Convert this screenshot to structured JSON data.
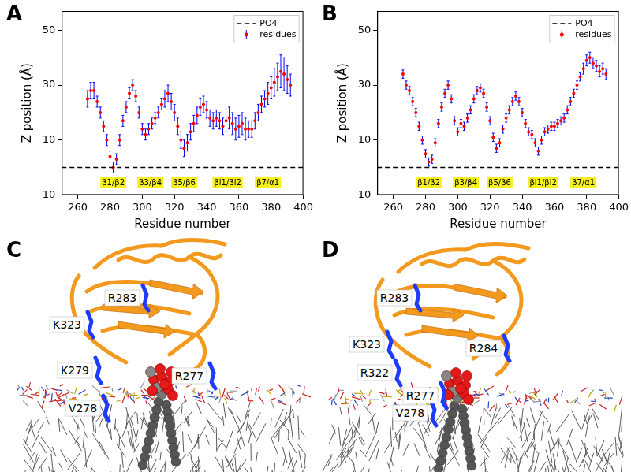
{
  "chart_data": [
    {
      "panel": "A",
      "type": "scatter",
      "x_label": "Residue number",
      "y_label": "Z position (Å)",
      "x": [
        266,
        268,
        270,
        272,
        274,
        276,
        278,
        280,
        282,
        284,
        286,
        288,
        290,
        292,
        294,
        296,
        298,
        300,
        302,
        304,
        306,
        308,
        310,
        312,
        314,
        316,
        318,
        320,
        322,
        324,
        326,
        328,
        330,
        332,
        334,
        336,
        338,
        340,
        342,
        344,
        346,
        348,
        350,
        352,
        354,
        356,
        358,
        360,
        362,
        364,
        366,
        368,
        370,
        372,
        374,
        376,
        378,
        380,
        382,
        384,
        386,
        388,
        390,
        392
      ],
      "series": [
        {
          "name": "residues",
          "color": "#ff0000",
          "marker": "circle",
          "values": [
            25,
            28,
            28,
            24,
            20,
            15,
            10,
            4,
            0,
            3,
            10,
            17,
            22,
            27,
            30,
            26,
            20,
            14,
            12,
            14,
            16,
            18,
            20,
            23,
            25,
            27,
            24,
            20,
            15,
            10,
            7,
            9,
            13,
            16,
            19,
            22,
            23,
            21,
            18,
            17,
            18,
            17,
            15,
            17,
            18,
            16,
            14,
            15,
            16,
            14,
            14,
            14,
            17,
            20,
            23,
            25,
            27,
            29,
            31,
            33,
            35,
            34,
            32,
            30
          ],
          "errors": [
            3,
            3,
            3,
            2,
            2,
            2,
            2,
            2,
            2,
            2,
            2,
            2,
            2,
            2,
            2,
            2,
            2,
            2,
            2,
            2,
            2,
            2,
            2,
            2,
            3,
            3,
            3,
            3,
            3,
            3,
            3,
            3,
            3,
            3,
            3,
            3,
            3,
            3,
            3,
            3,
            3,
            3,
            3,
            4,
            4,
            4,
            4,
            4,
            4,
            4,
            3,
            3,
            3,
            3,
            3,
            3,
            4,
            4,
            5,
            5,
            6,
            6,
            5,
            4
          ]
        }
      ],
      "reference_lines": [
        {
          "name": "PO4",
          "y": 0,
          "color": "#000000",
          "line_style": "dashed"
        }
      ],
      "annotations": [
        {
          "text": "β1/β2",
          "x": 282,
          "y": -5.5
        },
        {
          "text": "β3/β4",
          "x": 305,
          "y": -5.5
        },
        {
          "text": "β5/β6",
          "x": 326,
          "y": -5.5
        },
        {
          "text": "βi1/βi2",
          "x": 353,
          "y": -5.5
        },
        {
          "text": "β7/α1",
          "x": 378,
          "y": -5.5
        }
      ],
      "xlim": [
        250,
        400
      ],
      "ylim": [
        -10,
        57
      ],
      "xticks": [
        260,
        280,
        300,
        320,
        340,
        360,
        380,
        400
      ],
      "yticks": [
        -10,
        10,
        30,
        50
      ],
      "grid": false,
      "legend": "upper right"
    },
    {
      "panel": "B",
      "type": "scatter",
      "x_label": "Residue number",
      "y_label": "Z position (Å)",
      "x": [
        266,
        268,
        270,
        272,
        274,
        276,
        278,
        280,
        282,
        284,
        286,
        288,
        290,
        292,
        294,
        296,
        298,
        300,
        302,
        304,
        306,
        308,
        310,
        312,
        314,
        316,
        318,
        320,
        322,
        324,
        326,
        328,
        330,
        332,
        334,
        336,
        338,
        340,
        342,
        344,
        346,
        348,
        350,
        352,
        354,
        356,
        358,
        360,
        362,
        364,
        366,
        368,
        370,
        372,
        374,
        376,
        378,
        380,
        382,
        384,
        386,
        388,
        390,
        392
      ],
      "series": [
        {
          "name": "residues",
          "color": "#ff0000",
          "marker": "circle",
          "values": [
            34,
            30,
            28,
            24,
            20,
            15,
            10,
            5,
            2,
            3,
            9,
            16,
            22,
            27,
            30,
            25,
            17,
            13,
            16,
            15,
            18,
            21,
            25,
            28,
            29,
            27,
            22,
            17,
            11,
            7,
            9,
            14,
            18,
            21,
            24,
            26,
            24,
            20,
            16,
            13,
            12,
            9,
            6,
            10,
            13,
            14,
            15,
            15,
            16,
            17,
            18,
            21,
            24,
            27,
            30,
            33,
            36,
            39,
            40,
            38,
            37,
            35,
            36,
            34
          ],
          "errors": [
            1.5,
            1.5,
            1.5,
            1.5,
            1.5,
            1.5,
            1.5,
            1.5,
            1.5,
            1.5,
            1.5,
            1.5,
            1.5,
            1.5,
            1.5,
            1.5,
            1.5,
            1.5,
            1.5,
            1.5,
            1.5,
            1.5,
            1.5,
            1.5,
            1.5,
            1.5,
            1.5,
            1.5,
            1.5,
            1.5,
            1.5,
            1.5,
            1.5,
            1.5,
            1.5,
            1.5,
            1.5,
            1.5,
            1.5,
            1.5,
            1.5,
            1.5,
            1.5,
            1.5,
            1.5,
            1.5,
            1.5,
            1.5,
            1.5,
            1.5,
            1.5,
            1.5,
            1.5,
            1.5,
            1.5,
            1.5,
            2,
            2,
            2,
            2,
            2,
            2,
            2,
            2
          ]
        }
      ],
      "reference_lines": [
        {
          "name": "PO4",
          "y": 0,
          "color": "#000000",
          "line_style": "dashed"
        }
      ],
      "annotations": [
        {
          "text": "β1/β2",
          "x": 282,
          "y": -5.5
        },
        {
          "text": "β3/β4",
          "x": 305,
          "y": -5.5
        },
        {
          "text": "β5/β6",
          "x": 326,
          "y": -5.5
        },
        {
          "text": "βi1/βi2",
          "x": 353,
          "y": -5.5
        },
        {
          "text": "β7/α1",
          "x": 378,
          "y": -5.5
        }
      ],
      "xlim": [
        250,
        400
      ],
      "ylim": [
        -10,
        57
      ],
      "xticks": [
        260,
        280,
        300,
        320,
        340,
        360,
        380,
        400
      ],
      "yticks": [
        -10,
        10,
        30,
        50
      ],
      "grid": false,
      "legend": "upper right"
    }
  ],
  "images": [
    {
      "panel": "C",
      "labels": [
        "K323",
        "R283",
        "K279",
        "R277",
        "V278"
      ]
    },
    {
      "panel": "D",
      "labels": [
        "K323",
        "R283",
        "R322",
        "R284",
        "R277",
        "V278"
      ]
    }
  ]
}
